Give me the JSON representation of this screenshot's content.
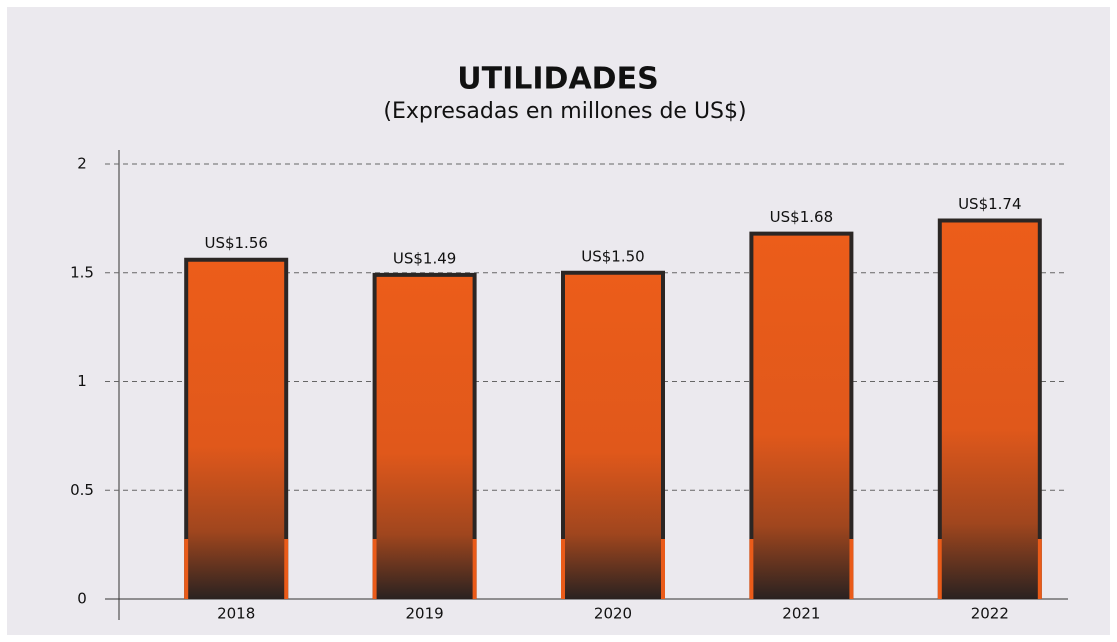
{
  "chart_data": {
    "type": "bar",
    "title": "UTILIDADES",
    "subtitle": "(Expresadas en millones de US$)",
    "categories": [
      "2018",
      "2019",
      "2020",
      "2021",
      "2022"
    ],
    "values": [
      1.56,
      1.49,
      1.5,
      1.68,
      1.74
    ],
    "value_labels": [
      "US$1.56",
      "US$1.49",
      "US$1.50",
      "US$1.68",
      "US$1.74"
    ],
    "color": "#ea5b19",
    "ylim": [
      0,
      2
    ],
    "yticks": [
      0,
      0.5,
      1,
      1.5,
      2
    ],
    "grid": true
  }
}
